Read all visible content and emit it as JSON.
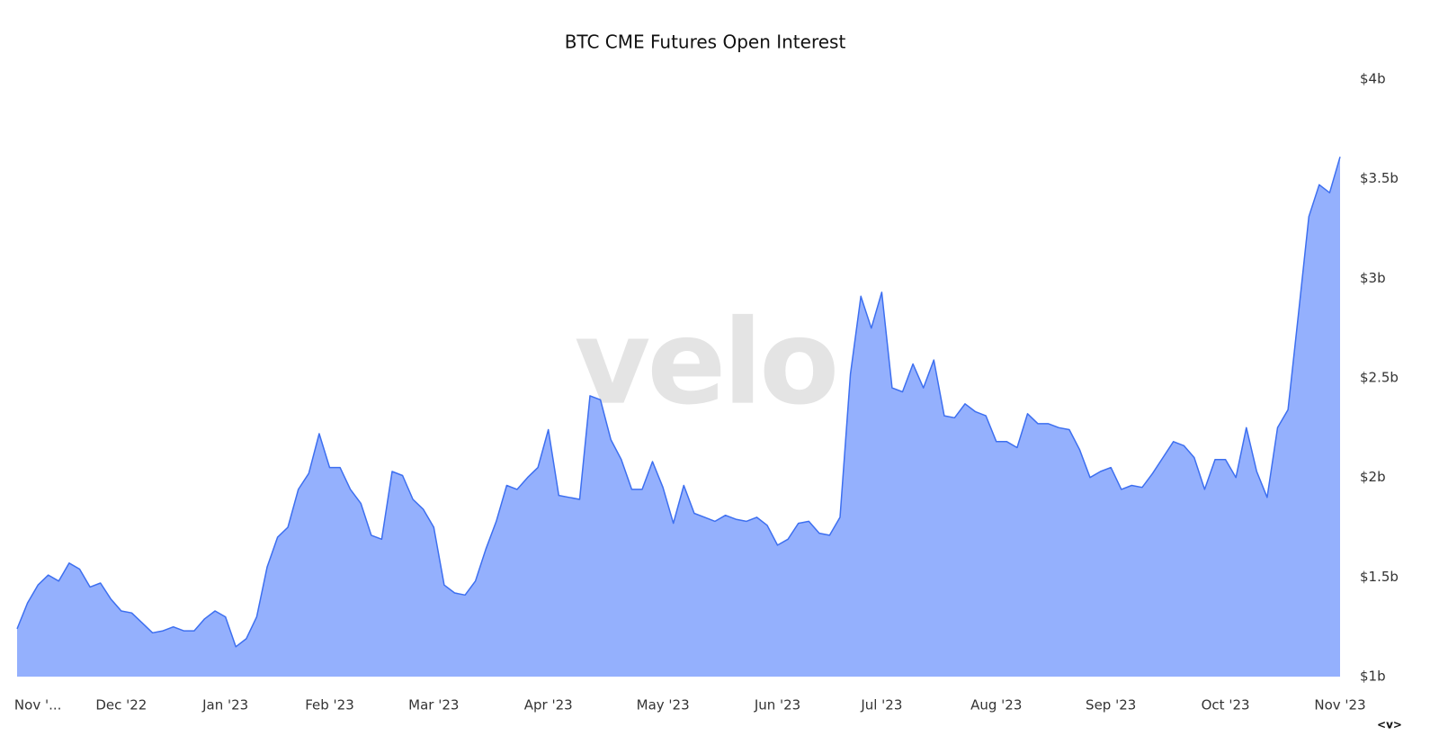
{
  "chart_data": {
    "type": "area",
    "title": "BTC CME Futures Open Interest",
    "watermark": "velo",
    "footer": "<v>",
    "categories": [
      null,
      null,
      "Nov '...",
      null,
      null,
      null,
      null,
      null,
      null,
      null,
      "Dec '22",
      null,
      null,
      null,
      null,
      null,
      null,
      null,
      null,
      null,
      "Jan '23",
      null,
      null,
      null,
      null,
      null,
      null,
      null,
      null,
      null,
      "Feb '23",
      null,
      null,
      null,
      null,
      null,
      null,
      null,
      null,
      null,
      "Mar '23",
      null,
      null,
      null,
      null,
      null,
      null,
      null,
      null,
      null,
      null,
      "Apr '23",
      null,
      null,
      null,
      null,
      null,
      null,
      null,
      null,
      null,
      null,
      "May '23",
      null,
      null,
      null,
      null,
      null,
      null,
      null,
      null,
      null,
      null,
      "Jun '23",
      null,
      null,
      null,
      null,
      null,
      null,
      null,
      null,
      null,
      "Jul '23",
      null,
      null,
      null,
      null,
      null,
      null,
      null,
      null,
      null,
      null,
      "Aug '23",
      null,
      null,
      null,
      null,
      null,
      null,
      null,
      null,
      null,
      null,
      "Sep '23",
      null,
      null,
      null,
      null,
      null,
      null,
      null,
      null,
      null,
      null,
      "Oct '23",
      null,
      null,
      null,
      null,
      null,
      null,
      null,
      null,
      null,
      null,
      "Nov '23"
    ],
    "values": [
      1.24,
      1.37,
      1.46,
      1.51,
      1.48,
      1.57,
      1.54,
      1.45,
      1.47,
      1.39,
      1.33,
      1.32,
      1.27,
      1.22,
      1.23,
      1.25,
      1.23,
      1.23,
      1.29,
      1.33,
      1.3,
      1.15,
      1.19,
      1.3,
      1.55,
      1.7,
      1.75,
      1.94,
      2.02,
      2.22,
      2.05,
      2.05,
      1.94,
      1.87,
      1.71,
      1.69,
      2.03,
      2.01,
      1.89,
      1.84,
      1.75,
      1.46,
      1.42,
      1.41,
      1.48,
      1.64,
      1.78,
      1.96,
      1.94,
      2.0,
      2.05,
      2.24,
      1.91,
      1.9,
      1.89,
      2.41,
      2.39,
      2.19,
      2.09,
      1.94,
      1.94,
      2.08,
      1.95,
      1.77,
      1.96,
      1.82,
      1.8,
      1.78,
      1.81,
      1.79,
      1.78,
      1.8,
      1.76,
      1.66,
      1.69,
      1.77,
      1.78,
      1.72,
      1.71,
      1.8,
      2.52,
      2.91,
      2.75,
      2.93,
      2.45,
      2.43,
      2.57,
      2.45,
      2.59,
      2.31,
      2.3,
      2.37,
      2.33,
      2.31,
      2.18,
      2.18,
      2.15,
      2.32,
      2.27,
      2.27,
      2.25,
      2.24,
      2.14,
      2.0,
      2.03,
      2.05,
      1.94,
      1.96,
      1.95,
      2.02,
      2.1,
      2.18,
      2.16,
      2.1,
      1.94,
      2.09,
      2.09,
      2.0,
      2.25,
      2.03,
      1.9,
      2.25,
      2.34,
      2.82,
      3.31,
      3.47,
      3.43,
      3.61
    ],
    "color": "#3d6ff0",
    "fill": "#94b0fd",
    "ylim": [
      1,
      4
    ],
    "yticks": [
      {
        "value": 1,
        "label": "$1b"
      },
      {
        "value": 1.5,
        "label": "$1.5b"
      },
      {
        "value": 2,
        "label": "$2b"
      },
      {
        "value": 2.5,
        "label": "$2.5b"
      },
      {
        "value": 3,
        "label": "$3b"
      },
      {
        "value": 3.5,
        "label": "$3.5b"
      },
      {
        "value": 4,
        "label": "$4b"
      }
    ],
    "grid": false
  }
}
